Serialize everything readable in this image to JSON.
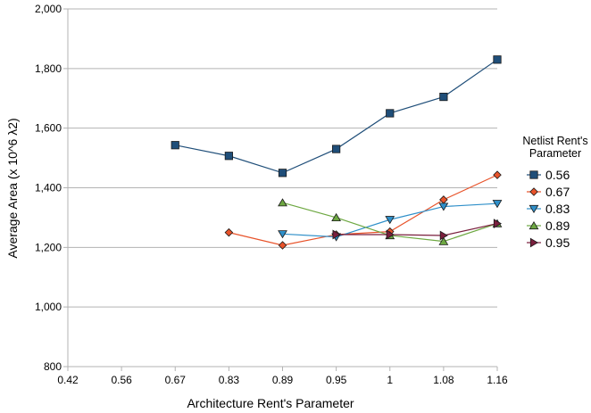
{
  "chart_data": {
    "type": "line",
    "categories": [
      "0.42",
      "0.56",
      "0.67",
      "0.83",
      "0.89",
      "0.95",
      "1",
      "1.08",
      "1.16"
    ],
    "xlabel": "Architecture Rent's Parameter",
    "ylabel": "Average Area (x 10^6 λ2)",
    "ylim": [
      800,
      2000
    ],
    "yticks": [
      "800",
      "1,000",
      "1,200",
      "1,400",
      "1,600",
      "1,800",
      "2,000"
    ],
    "grid": "horizontal",
    "legend": {
      "title": [
        "Netlist Rent's",
        "Parameter"
      ],
      "position": "right"
    },
    "series": [
      {
        "name": "0.56",
        "color": "#1f4e79",
        "marker": "square",
        "values": [
          null,
          null,
          1543,
          1507,
          1450,
          1530,
          1650,
          1705,
          1830
        ]
      },
      {
        "name": "0.67",
        "color": "#e8532a",
        "marker": "diamond",
        "values": [
          null,
          null,
          null,
          1250,
          1207,
          1243,
          1253,
          1360,
          1443
        ]
      },
      {
        "name": "0.83",
        "color": "#2e8fc9",
        "marker": "triangle-down",
        "values": [
          null,
          null,
          null,
          null,
          1245,
          1235,
          1293,
          1337,
          1347
        ]
      },
      {
        "name": "0.89",
        "color": "#6ea842",
        "marker": "triangle-up",
        "values": [
          null,
          null,
          null,
          null,
          1350,
          1300,
          1240,
          1220,
          1280
        ]
      },
      {
        "name": "0.95",
        "color": "#7a1f3d",
        "marker": "triangle-right",
        "values": [
          null,
          null,
          null,
          null,
          null,
          1243,
          1243,
          1240,
          1280
        ]
      }
    ]
  }
}
